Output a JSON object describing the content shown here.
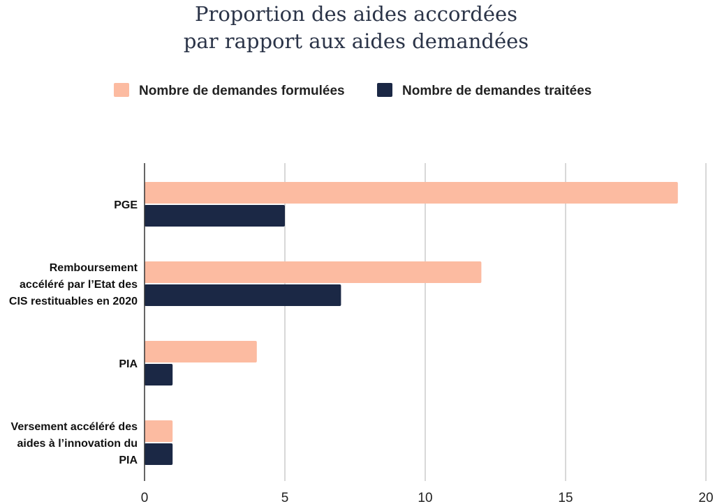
{
  "chart_data": {
    "type": "bar",
    "orientation": "horizontal",
    "title_lines": [
      "Proportion des aides accordées",
      "par rapport aux aides demandées"
    ],
    "categories": [
      [
        "PGE"
      ],
      [
        "Remboursement",
        "accéléré par l’Etat des",
        "CIS restituables en 2020"
      ],
      [
        "PIA"
      ],
      [
        "Versement accéléré des",
        "aides à l’innovation du",
        "PIA"
      ]
    ],
    "series": [
      {
        "name": "Nombre de demandes formulées",
        "color": "#fcbba1",
        "values": [
          19,
          12,
          4,
          1
        ]
      },
      {
        "name": "Nombre de demandes traitées",
        "color": "#1b2845",
        "values": [
          5,
          7,
          1,
          1
        ]
      }
    ],
    "xlim": [
      0,
      20
    ],
    "xticks": [
      "0",
      "5",
      "10",
      "15",
      "20"
    ],
    "grid": true,
    "legend_position": "top"
  }
}
